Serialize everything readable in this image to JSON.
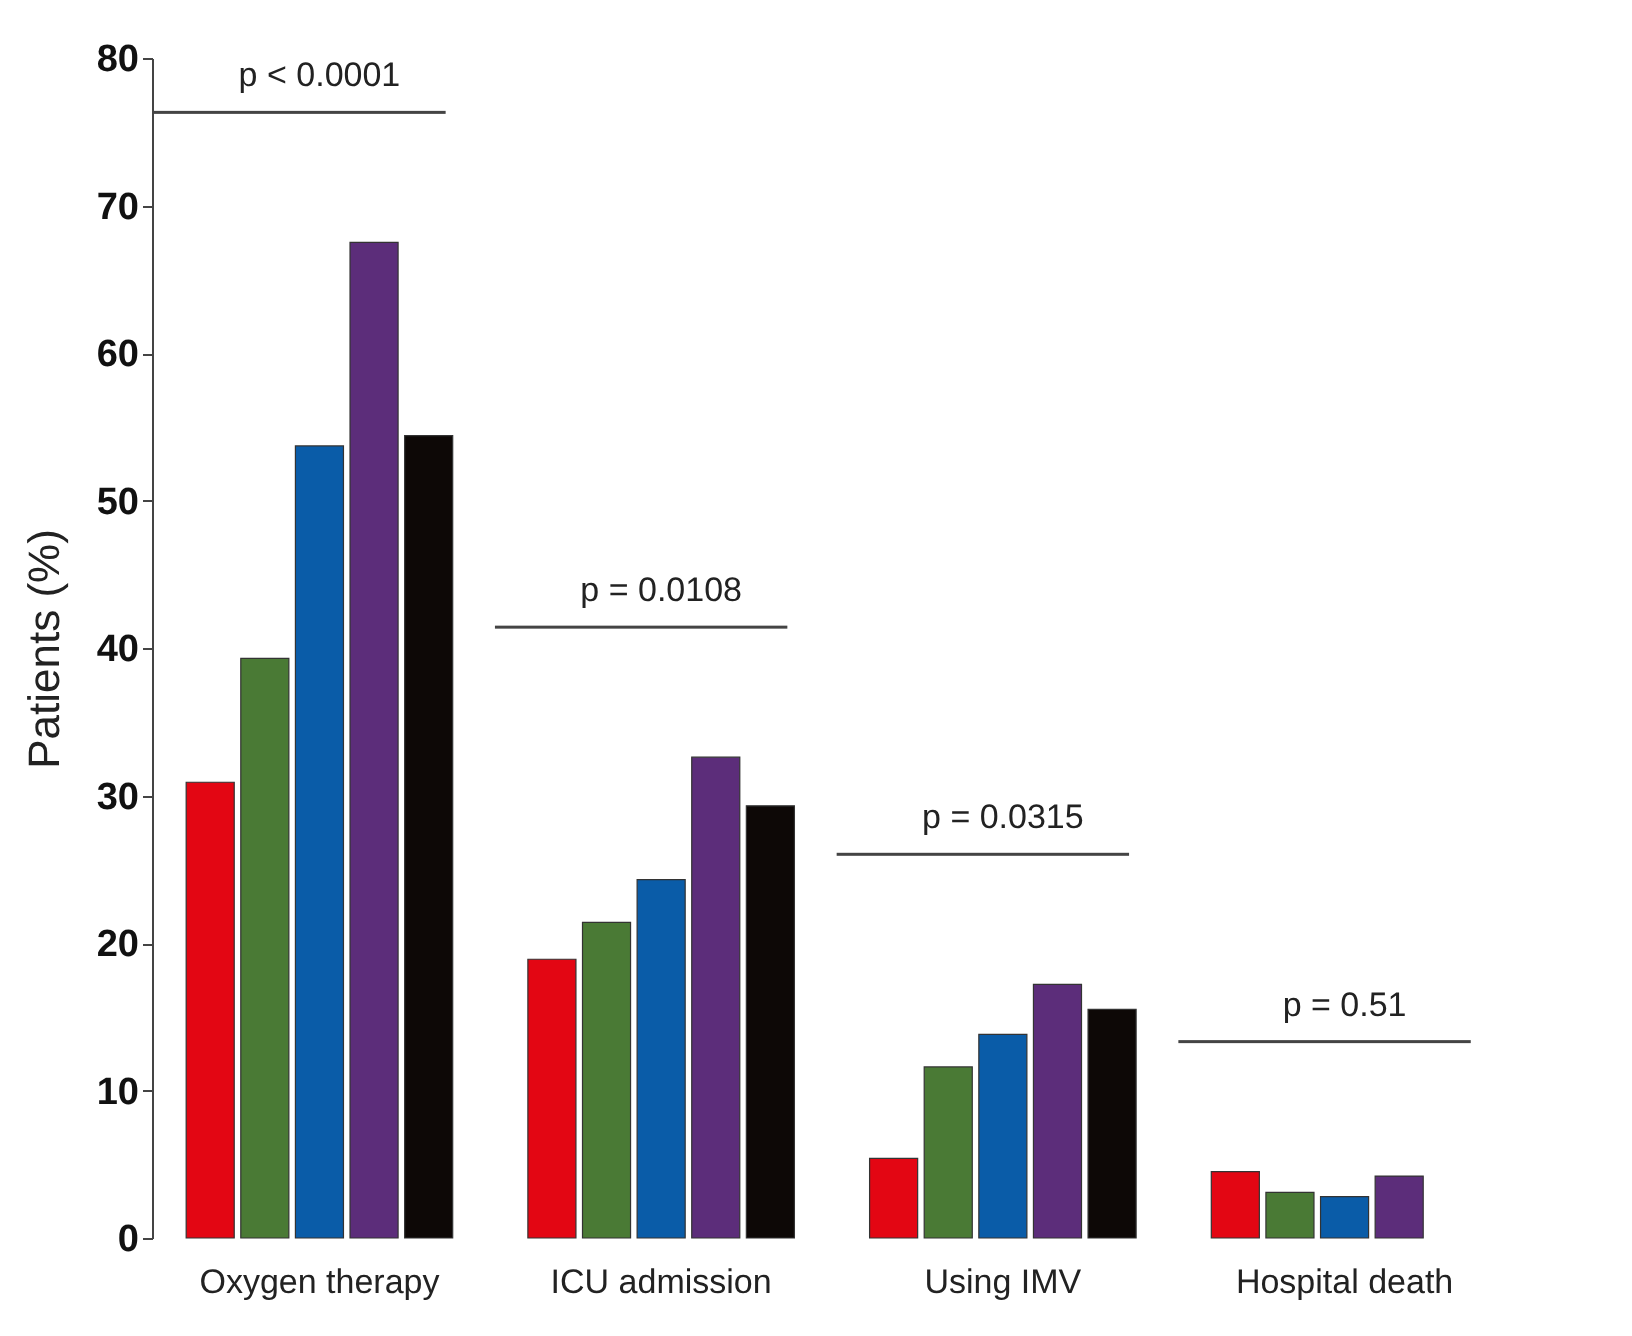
{
  "chart_data": {
    "type": "bar",
    "ylabel": "Patients (%)",
    "categories": [
      "Oxygen therapy",
      "ICU admission",
      "Using IMV",
      "Hospital death"
    ],
    "series": [
      {
        "color": "#e30613",
        "values": [
          30.9,
          18.9,
          5.4,
          4.5
        ]
      },
      {
        "color": "#4a7a35",
        "values": [
          39.3,
          21.4,
          11.6,
          3.1
        ]
      },
      {
        "color": "#0a5ca8",
        "values": [
          53.7,
          24.3,
          13.8,
          2.8
        ]
      },
      {
        "color": "#5c2d7a",
        "values": [
          67.5,
          32.6,
          17.2,
          4.2
        ]
      },
      {
        "color": "#0d0806",
        "values": [
          54.4,
          29.3,
          15.5,
          null
        ]
      }
    ],
    "ylim": [
      0,
      80
    ],
    "yticks": [
      0,
      10,
      20,
      30,
      40,
      50,
      60,
      70,
      80
    ],
    "grid": false,
    "legend": false,
    "annotations": [
      "p < 0.0001",
      "p = 0.0108",
      "p = 0.0315",
      "p = 0.51"
    ]
  }
}
